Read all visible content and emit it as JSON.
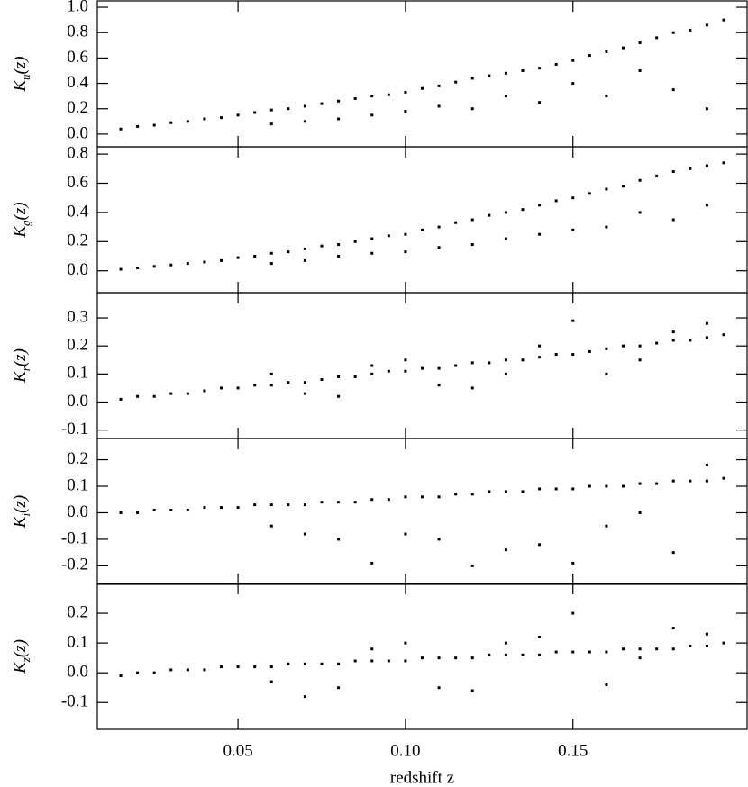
{
  "chart_data": [
    {
      "type": "scatter",
      "ylabel": [
        "K",
        "u",
        "(z)"
      ],
      "color": "#000000",
      "xlim": [
        0.008,
        0.202
      ],
      "ylim": [
        -0.1,
        1.05
      ],
      "yticks": [
        {
          "value": 0,
          "label": "0.0"
        },
        0.2,
        0.4,
        0.6,
        0.8,
        {
          "value": 1,
          "label": "1.0"
        }
      ],
      "x": [
        0.015,
        0.02,
        0.025,
        0.03,
        0.035,
        0.04,
        0.045,
        0.05,
        0.055,
        0.06,
        0.065,
        0.07,
        0.075,
        0.08,
        0.085,
        0.09,
        0.095,
        0.1,
        0.105,
        0.11,
        0.115,
        0.12,
        0.125,
        0.13,
        0.135,
        0.14,
        0.145,
        0.15,
        0.155,
        0.16,
        0.165,
        0.17,
        0.175,
        0.18,
        0.185,
        0.19,
        0.195,
        0.06,
        0.08,
        0.1,
        0.12,
        0.14,
        0.16,
        0.18,
        0.07,
        0.09,
        0.11,
        0.13,
        0.15,
        0.17,
        0.19
      ],
      "y": [
        0.04,
        0.06,
        0.07,
        0.09,
        0.1,
        0.12,
        0.13,
        0.15,
        0.17,
        0.19,
        0.2,
        0.22,
        0.24,
        0.26,
        0.28,
        0.3,
        0.31,
        0.33,
        0.36,
        0.38,
        0.41,
        0.44,
        0.46,
        0.48,
        0.5,
        0.52,
        0.55,
        0.58,
        0.62,
        0.65,
        0.68,
        0.72,
        0.76,
        0.8,
        0.82,
        0.86,
        0.9,
        0.08,
        0.12,
        0.18,
        0.2,
        0.25,
        0.3,
        0.35,
        0.1,
        0.15,
        0.22,
        0.3,
        0.4,
        0.5,
        0.2
      ]
    },
    {
      "type": "scatter",
      "ylabel": [
        "K",
        "g",
        "(z)"
      ],
      "color": "#000000",
      "xlim": [
        0.008,
        0.202
      ],
      "ylim": [
        -0.15,
        0.85
      ],
      "yticks": [
        {
          "value": 0,
          "label": "0.0"
        },
        0.2,
        0.4,
        0.6,
        0.8
      ],
      "x": [
        0.015,
        0.02,
        0.025,
        0.03,
        0.035,
        0.04,
        0.045,
        0.05,
        0.055,
        0.06,
        0.065,
        0.07,
        0.075,
        0.08,
        0.085,
        0.09,
        0.095,
        0.1,
        0.105,
        0.11,
        0.115,
        0.12,
        0.125,
        0.13,
        0.135,
        0.14,
        0.145,
        0.15,
        0.155,
        0.16,
        0.165,
        0.17,
        0.175,
        0.18,
        0.185,
        0.19,
        0.195,
        0.06,
        0.08,
        0.1,
        0.12,
        0.14,
        0.16,
        0.18,
        0.07,
        0.09,
        0.11,
        0.13,
        0.15,
        0.17,
        0.19
      ],
      "y": [
        0.01,
        0.02,
        0.03,
        0.04,
        0.05,
        0.06,
        0.07,
        0.09,
        0.1,
        0.12,
        0.13,
        0.15,
        0.17,
        0.18,
        0.2,
        0.22,
        0.24,
        0.25,
        0.28,
        0.3,
        0.33,
        0.35,
        0.38,
        0.4,
        0.42,
        0.45,
        0.48,
        0.5,
        0.53,
        0.56,
        0.58,
        0.62,
        0.65,
        0.68,
        0.7,
        0.72,
        0.74,
        0.05,
        0.1,
        0.13,
        0.18,
        0.25,
        0.3,
        0.35,
        0.07,
        0.12,
        0.16,
        0.22,
        0.28,
        0.4,
        0.45
      ]
    },
    {
      "type": "scatter",
      "ylabel": [
        "K",
        "r",
        "(z)"
      ],
      "color": "#000000",
      "xlim": [
        0.008,
        0.202
      ],
      "ylim": [
        -0.13,
        0.39
      ],
      "yticks": [
        -0.1,
        {
          "value": 0,
          "label": "0.0"
        },
        0.1,
        0.2,
        0.3
      ],
      "x": [
        0.015,
        0.02,
        0.025,
        0.03,
        0.035,
        0.04,
        0.045,
        0.05,
        0.055,
        0.06,
        0.065,
        0.07,
        0.075,
        0.08,
        0.085,
        0.09,
        0.095,
        0.1,
        0.105,
        0.11,
        0.115,
        0.12,
        0.125,
        0.13,
        0.135,
        0.14,
        0.145,
        0.15,
        0.155,
        0.16,
        0.165,
        0.17,
        0.175,
        0.18,
        0.185,
        0.19,
        0.195,
        0.06,
        0.08,
        0.1,
        0.12,
        0.14,
        0.16,
        0.18,
        0.07,
        0.09,
        0.11,
        0.13,
        0.15,
        0.17,
        0.19
      ],
      "y": [
        0.01,
        0.02,
        0.02,
        0.03,
        0.03,
        0.04,
        0.05,
        0.05,
        0.06,
        0.06,
        0.07,
        0.07,
        0.08,
        0.09,
        0.09,
        0.1,
        0.11,
        0.11,
        0.12,
        0.12,
        0.13,
        0.14,
        0.14,
        0.15,
        0.15,
        0.16,
        0.17,
        0.17,
        0.18,
        0.19,
        0.2,
        0.2,
        0.21,
        0.22,
        0.22,
        0.23,
        0.24,
        0.1,
        0.02,
        0.15,
        0.05,
        0.2,
        0.1,
        0.25,
        0.03,
        0.13,
        0.06,
        0.1,
        0.29,
        0.15,
        0.28
      ]
    },
    {
      "type": "scatter",
      "ylabel": [
        "K",
        "i",
        "(z)"
      ],
      "color": "#000000",
      "xlim": [
        0.008,
        0.202
      ],
      "ylim": [
        -0.27,
        0.28
      ],
      "yticks": [
        -0.2,
        -0.1,
        {
          "value": 0,
          "label": "0.0"
        },
        0.1,
        0.2
      ],
      "x": [
        0.015,
        0.02,
        0.025,
        0.03,
        0.035,
        0.04,
        0.045,
        0.05,
        0.055,
        0.06,
        0.065,
        0.07,
        0.075,
        0.08,
        0.085,
        0.09,
        0.095,
        0.1,
        0.105,
        0.11,
        0.115,
        0.12,
        0.125,
        0.13,
        0.135,
        0.14,
        0.145,
        0.15,
        0.155,
        0.16,
        0.165,
        0.17,
        0.175,
        0.18,
        0.185,
        0.19,
        0.195,
        0.06,
        0.08,
        0.1,
        0.12,
        0.14,
        0.16,
        0.18,
        0.07,
        0.09,
        0.11,
        0.13,
        0.15,
        0.17,
        0.19
      ],
      "y": [
        0.0,
        0.0,
        0.01,
        0.01,
        0.01,
        0.02,
        0.02,
        0.02,
        0.03,
        0.03,
        0.03,
        0.03,
        0.04,
        0.04,
        0.04,
        0.05,
        0.05,
        0.06,
        0.06,
        0.06,
        0.07,
        0.07,
        0.08,
        0.08,
        0.08,
        0.09,
        0.09,
        0.09,
        0.1,
        0.1,
        0.1,
        0.11,
        0.11,
        0.12,
        0.12,
        0.12,
        0.13,
        -0.05,
        -0.1,
        -0.08,
        -0.2,
        -0.12,
        -0.05,
        -0.15,
        -0.08,
        -0.19,
        -0.1,
        -0.14,
        -0.19,
        0.0,
        0.18
      ]
    },
    {
      "type": "scatter",
      "ylabel": [
        "K",
        "z",
        "(z)"
      ],
      "color": "#000000",
      "xlabel": "redshift z",
      "xlim": [
        0.008,
        0.202
      ],
      "ylim": [
        -0.19,
        0.3
      ],
      "xticks": [
        0.05,
        {
          "value": 0.1,
          "label": "0.10"
        },
        0.15
      ],
      "yticks": [
        -0.1,
        {
          "value": 0,
          "label": "0.0"
        },
        0.1,
        0.2
      ],
      "x": [
        0.015,
        0.02,
        0.025,
        0.03,
        0.035,
        0.04,
        0.045,
        0.05,
        0.055,
        0.06,
        0.065,
        0.07,
        0.075,
        0.08,
        0.085,
        0.09,
        0.095,
        0.1,
        0.105,
        0.11,
        0.115,
        0.12,
        0.125,
        0.13,
        0.135,
        0.14,
        0.145,
        0.15,
        0.155,
        0.16,
        0.165,
        0.17,
        0.175,
        0.18,
        0.185,
        0.19,
        0.195,
        0.06,
        0.08,
        0.1,
        0.12,
        0.14,
        0.16,
        0.18,
        0.07,
        0.09,
        0.11,
        0.13,
        0.15,
        0.17,
        0.19
      ],
      "y": [
        -0.01,
        0.0,
        0.0,
        0.01,
        0.01,
        0.01,
        0.02,
        0.02,
        0.02,
        0.02,
        0.03,
        0.03,
        0.03,
        0.03,
        0.04,
        0.04,
        0.04,
        0.04,
        0.05,
        0.05,
        0.05,
        0.05,
        0.06,
        0.06,
        0.06,
        0.06,
        0.07,
        0.07,
        0.07,
        0.07,
        0.08,
        0.08,
        0.08,
        0.08,
        0.09,
        0.09,
        0.1,
        -0.03,
        -0.05,
        0.1,
        -0.06,
        0.12,
        -0.04,
        0.15,
        -0.08,
        0.08,
        -0.05,
        0.1,
        0.2,
        0.05,
        0.13
      ]
    }
  ]
}
